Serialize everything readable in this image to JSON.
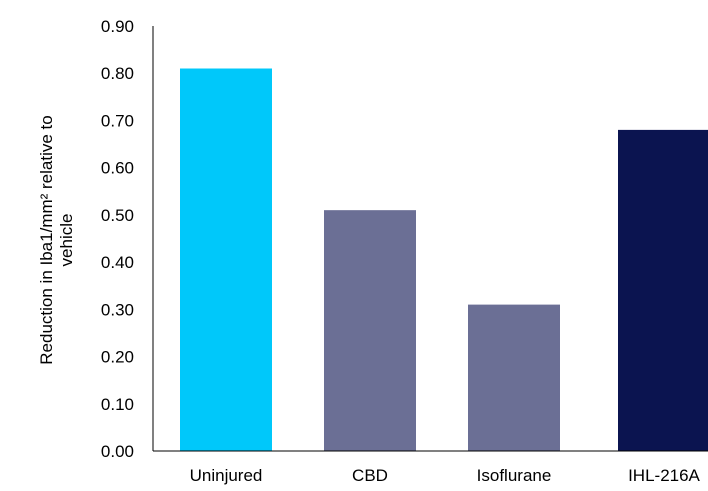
{
  "chart_data": {
    "type": "bar",
    "title": "",
    "xlabel": "",
    "ylabel_lines": [
      "Reduction in Iba1/mm² relative to",
      "vehicle"
    ],
    "ylim": [
      0,
      0.9
    ],
    "yticks": [
      "0.00",
      "0.10",
      "0.20",
      "0.30",
      "0.40",
      "0.50",
      "0.60",
      "0.70",
      "0.80",
      "0.90"
    ],
    "categories": [
      "Uninjured",
      "CBD",
      "Isoflurane",
      "IHL-216A"
    ],
    "values": [
      0.81,
      0.51,
      0.31,
      0.68
    ],
    "colors": [
      "#00C8FA",
      "#6B6F95",
      "#6B6F95",
      "#0B1450"
    ],
    "grid": false,
    "legend": "none"
  }
}
